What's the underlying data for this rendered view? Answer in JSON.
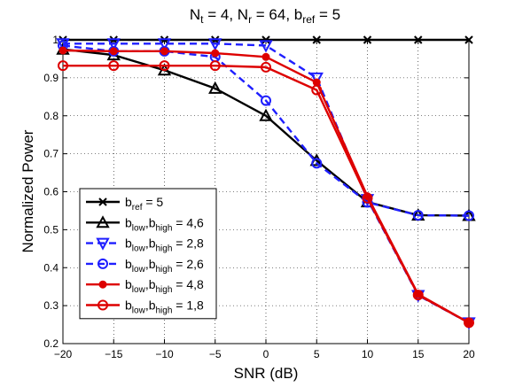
{
  "chart_data": {
    "type": "line",
    "title": {
      "parts": [
        {
          "text": "N",
          "baseline": "normal"
        },
        {
          "text": "t",
          "baseline": "sub"
        },
        {
          "text": " = 4, N",
          "baseline": "normal"
        },
        {
          "text": "r",
          "baseline": "sub"
        },
        {
          "text": " = 64, b",
          "baseline": "normal"
        },
        {
          "text": "ref",
          "baseline": "sub"
        },
        {
          "text": " = 5",
          "baseline": "normal"
        }
      ]
    },
    "xlabel": "SNR (dB)",
    "ylabel": "Normalized Power",
    "xlim": [
      -20,
      20
    ],
    "ylim": [
      0.2,
      1.0
    ],
    "xticks": [
      -20,
      -15,
      -10,
      -5,
      0,
      5,
      10,
      15,
      20
    ],
    "yticks": [
      0.2,
      0.3,
      0.4,
      0.5,
      0.6,
      0.7,
      0.8,
      0.9,
      1
    ],
    "xtick_labels": [
      "−20",
      "−15",
      "−10",
      "−5",
      "0",
      "5",
      "10",
      "15",
      "20"
    ],
    "ytick_labels": [
      "0.2",
      "0.3",
      "0.4",
      "0.5",
      "0.6",
      "0.7",
      "0.8",
      "0.9",
      "1"
    ],
    "grid": true,
    "legend_position": "bottom-left",
    "x": [
      -20,
      -15,
      -10,
      -5,
      0,
      5,
      10,
      15,
      20
    ],
    "series": [
      {
        "legend": [
          {
            "text": "b",
            "baseline": "normal"
          },
          {
            "text": "ref",
            "baseline": "sub"
          },
          {
            "text": " = 5",
            "baseline": "normal"
          }
        ],
        "color": "#000000",
        "dash": "solid",
        "marker": "x",
        "values": [
          1.0,
          1.0,
          1.0,
          1.0,
          1.0,
          1.0,
          1.0,
          1.0,
          1.0
        ]
      },
      {
        "legend": [
          {
            "text": "b",
            "baseline": "normal"
          },
          {
            "text": "low",
            "baseline": "sub"
          },
          {
            "text": ",b",
            "baseline": "normal"
          },
          {
            "text": "high",
            "baseline": "sub"
          },
          {
            "text": " = 4,6",
            "baseline": "normal"
          }
        ],
        "color": "#000000",
        "dash": "solid",
        "marker": "triangle-up",
        "values": [
          0.975,
          0.96,
          0.92,
          0.872,
          0.8,
          0.682,
          0.573,
          0.538,
          0.537
        ]
      },
      {
        "legend": [
          {
            "text": "b",
            "baseline": "normal"
          },
          {
            "text": "low",
            "baseline": "sub"
          },
          {
            "text": ",b",
            "baseline": "normal"
          },
          {
            "text": "high",
            "baseline": "sub"
          },
          {
            "text": " = 2,8",
            "baseline": "normal"
          }
        ],
        "color": "#1f1fff",
        "dash": "dashed",
        "marker": "triangle-down",
        "values": [
          0.99,
          0.99,
          0.99,
          0.99,
          0.985,
          0.9,
          0.58,
          0.327,
          0.255
        ]
      },
      {
        "legend": [
          {
            "text": "b",
            "baseline": "normal"
          },
          {
            "text": "low",
            "baseline": "sub"
          },
          {
            "text": ",b",
            "baseline": "normal"
          },
          {
            "text": "high",
            "baseline": "sub"
          },
          {
            "text": " = 2,6",
            "baseline": "normal"
          }
        ],
        "color": "#1f1fff",
        "dash": "dashed",
        "marker": "circle",
        "values": [
          0.985,
          0.97,
          0.97,
          0.955,
          0.84,
          0.675,
          0.572,
          0.538,
          0.537
        ]
      },
      {
        "legend": [
          {
            "text": "b",
            "baseline": "normal"
          },
          {
            "text": "low",
            "baseline": "sub"
          },
          {
            "text": ",b",
            "baseline": "normal"
          },
          {
            "text": "high",
            "baseline": "sub"
          },
          {
            "text": " = 4,8",
            "baseline": "normal"
          }
        ],
        "color": "#dd0000",
        "dash": "solid",
        "marker": "dot",
        "values": [
          0.972,
          0.97,
          0.97,
          0.965,
          0.955,
          0.888,
          0.588,
          0.33,
          0.255
        ]
      },
      {
        "legend": [
          {
            "text": "b",
            "baseline": "normal"
          },
          {
            "text": "low",
            "baseline": "sub"
          },
          {
            "text": ",b",
            "baseline": "normal"
          },
          {
            "text": "high",
            "baseline": "sub"
          },
          {
            "text": " = 1,8",
            "baseline": "normal"
          }
        ],
        "color": "#dd0000",
        "dash": "solid",
        "marker": "circle",
        "values": [
          0.932,
          0.932,
          0.932,
          0.932,
          0.928,
          0.868,
          0.583,
          0.328,
          0.255
        ]
      }
    ]
  }
}
